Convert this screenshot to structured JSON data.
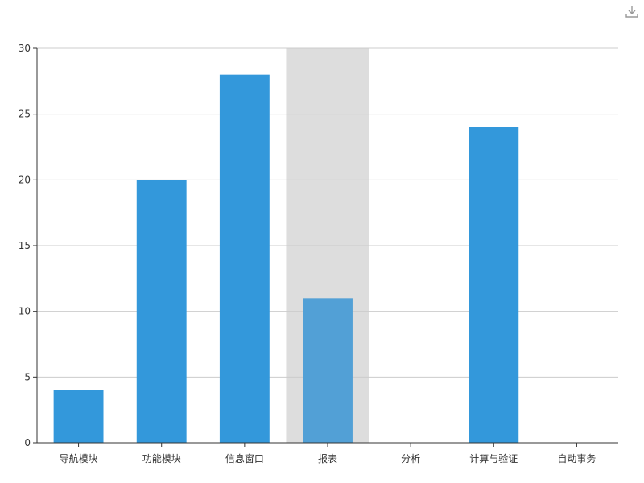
{
  "toolbar": {
    "download_icon": "download-icon"
  },
  "colors": {
    "bar": "#3398DB",
    "bar_highlight": "#52a0d6",
    "hover_band": "#dddddd",
    "grid": "#cccccc",
    "axis": "#333333"
  },
  "chart_data": {
    "type": "bar",
    "categories": [
      "导航模块",
      "功能模块",
      "信息窗口",
      "报表",
      "分析",
      "计算与验证",
      "自动事务"
    ],
    "values": [
      4,
      20,
      28,
      11,
      0,
      24,
      0
    ],
    "title": "",
    "xlabel": "",
    "ylabel": "",
    "ylim": [
      0,
      30
    ],
    "yticks": [
      0,
      5,
      10,
      15,
      20,
      25,
      30
    ],
    "grid": true,
    "highlighted_category": "报表"
  }
}
